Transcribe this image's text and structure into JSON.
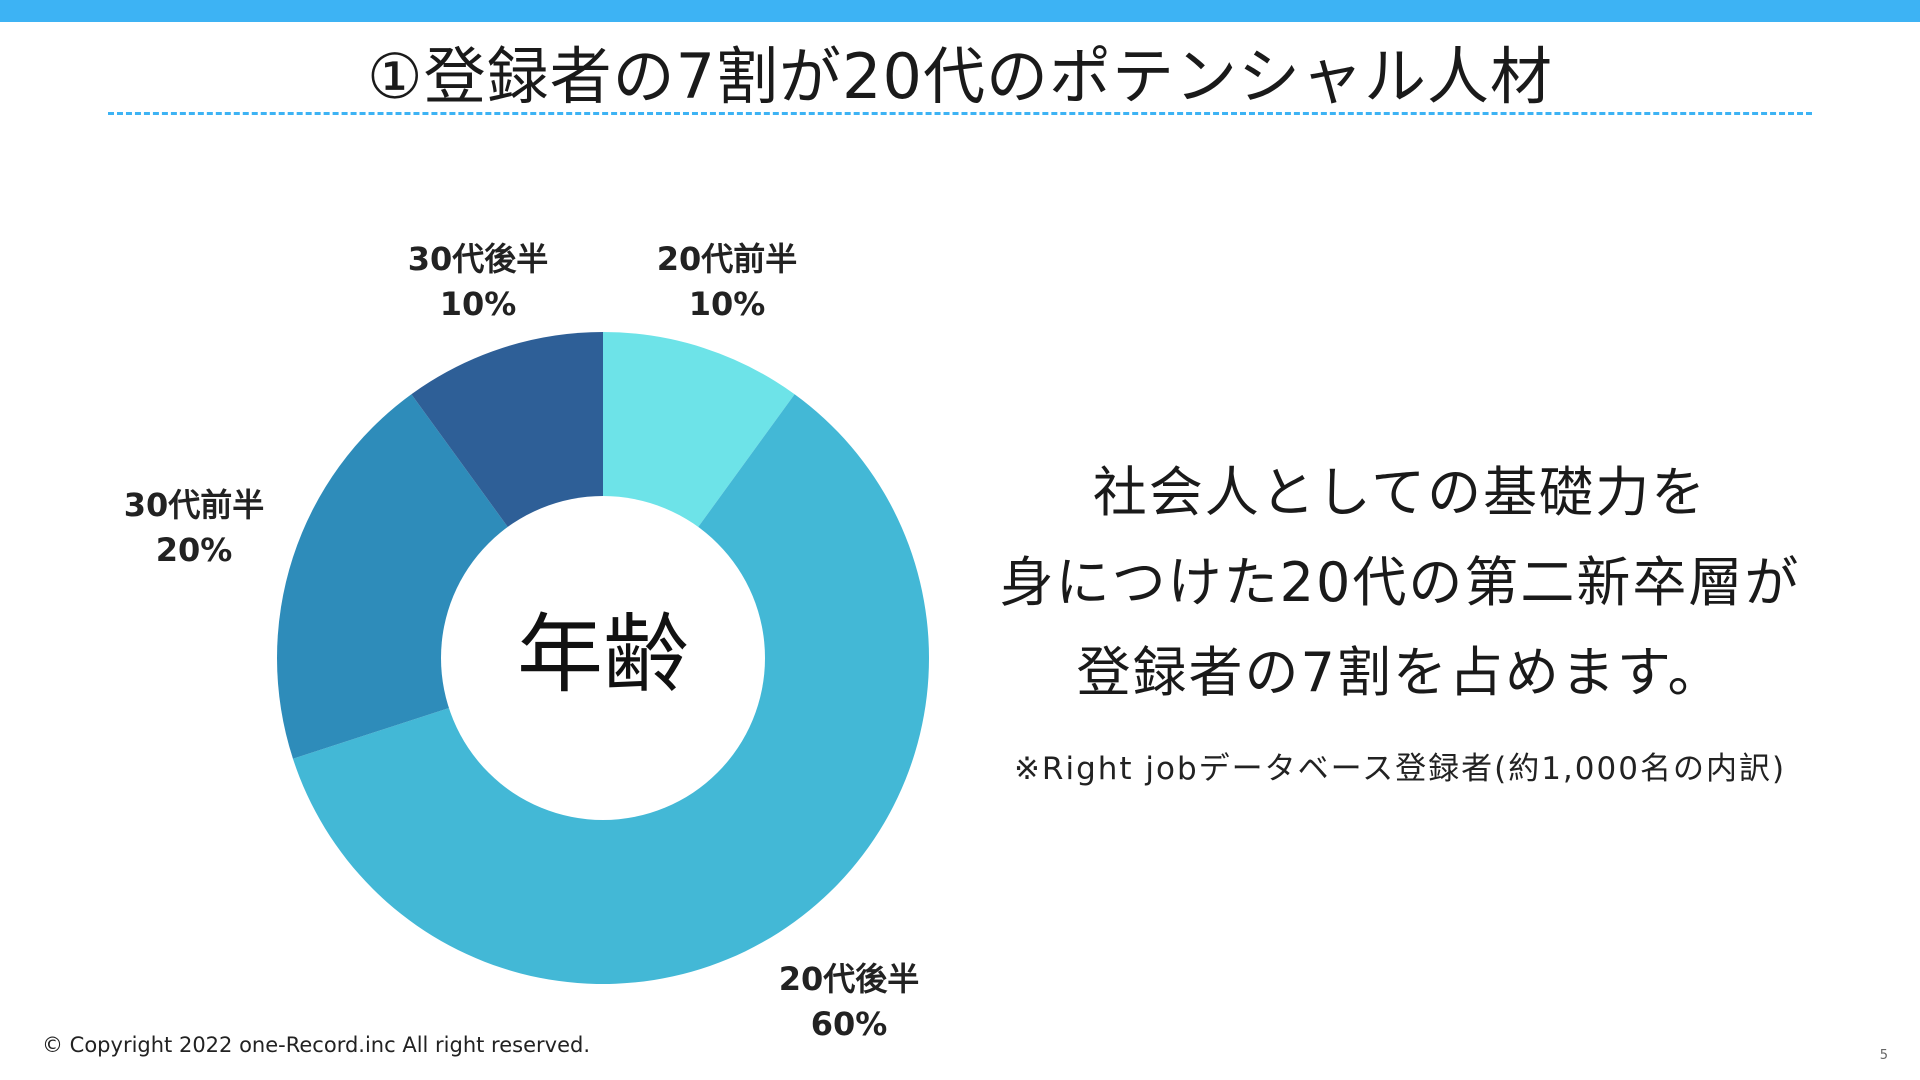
{
  "header": {
    "title": "①登録者の7割が20代のポテンシャル人材"
  },
  "chart_data": {
    "type": "pie",
    "donut": true,
    "center_label": "年齢",
    "categories": [
      "20代前半",
      "20代後半",
      "30代前半",
      "30代後半"
    ],
    "values": [
      10,
      60,
      20,
      10
    ],
    "value_labels": [
      "10%",
      "60%",
      "20%",
      "10%"
    ],
    "colors": [
      "#6de3e8",
      "#43b8d6",
      "#2e8cba",
      "#2e5f97"
    ],
    "start": "12 o'clock",
    "direction": "clockwise"
  },
  "message": {
    "lines": [
      "社会人としての基礎力を",
      "身につけた20代の第二新卒層が",
      "登録者の7割を占めます。"
    ],
    "note": "※Right jobデータベース登録者(約1,000名の内訳)"
  },
  "footer": {
    "copyright": "© Copyright 2022 one-Record.inc All right reserved.",
    "page_number": "5"
  },
  "colors": {
    "accent": "#3db3f4"
  }
}
